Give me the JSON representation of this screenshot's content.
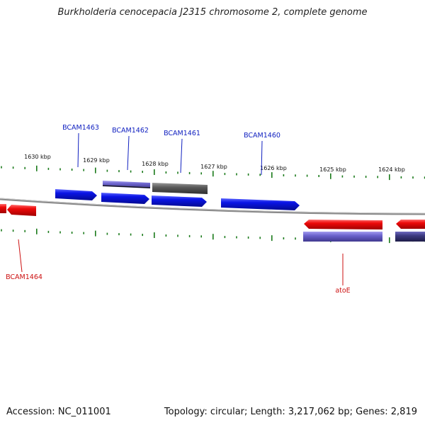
{
  "title": "Burkholderia cenocepacia J2315 chromosome 2, complete genome",
  "footer": {
    "accession": "Accession: NC_011001",
    "topology": "Topology: circular; Length: 3,217,062 bp; Genes: 2,819"
  },
  "colors": {
    "forward_gene": "#0a14e6",
    "reverse_gene": "#ee0a0a",
    "cds_blue": "#6b63cc",
    "cds_grey": "#5a5a5a",
    "cds_dark": "#3c3a80",
    "tick": "#1a7a1a",
    "forward_label": "#1020c0",
    "reverse_label": "#cc1010",
    "backbone": "#8a8a8a"
  },
  "ticks": [
    "1630 kbp",
    "1629 kbp",
    "1628 kbp",
    "1627 kbp",
    "1626 kbp",
    "1625 kbp",
    "1624 kbp"
  ],
  "forward_labels": [
    "BCAM1463",
    "BCAM1462",
    "BCAM1461",
    "BCAM1460"
  ],
  "reverse_labels": [
    "BCAM1464",
    "atoE"
  ]
}
